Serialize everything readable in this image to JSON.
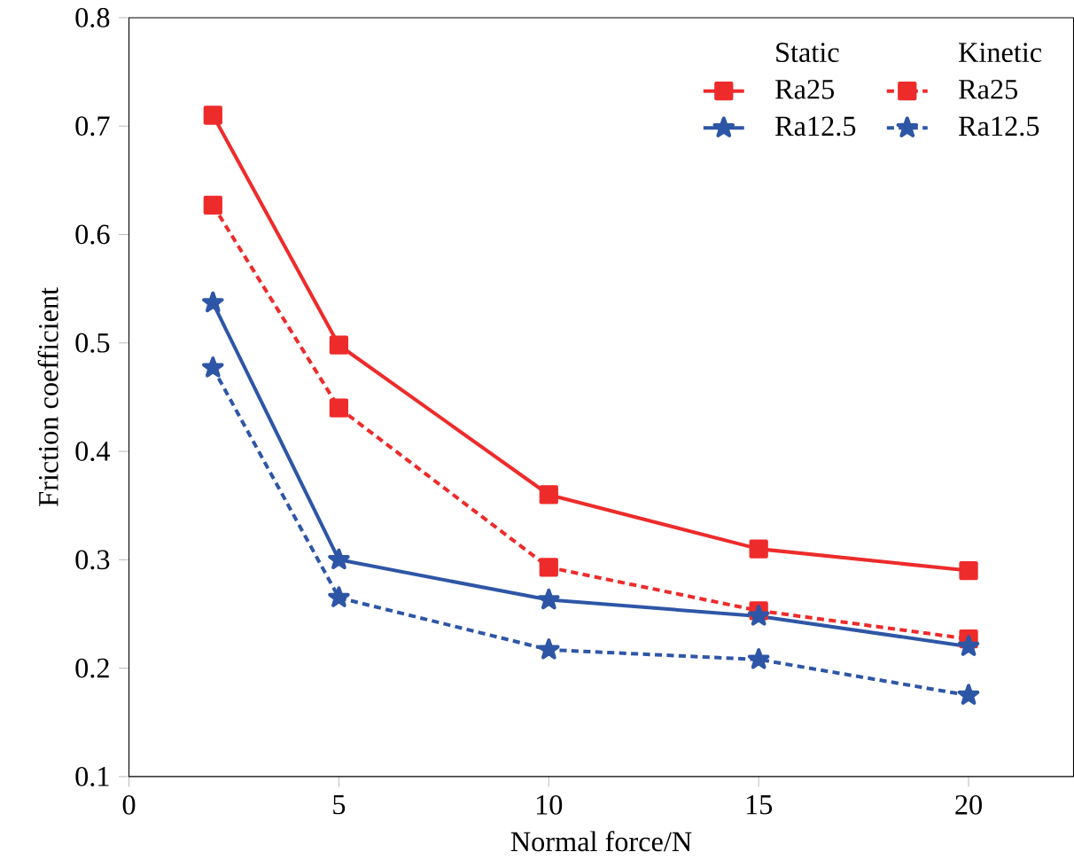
{
  "chart_data": {
    "type": "line",
    "xlabel": "Normal force/N",
    "ylabel": "Friction coefficient",
    "x": [
      2,
      5,
      10,
      15,
      20
    ],
    "series": [
      {
        "name": "Ra25",
        "color": "#ee2b2b",
        "values": [
          0.71,
          0.498,
          0.36,
          0.31,
          0.29
        ],
        "marker": "square",
        "line_style": "solid"
      },
      {
        "name": "Ra25",
        "color": "#ee2b2b",
        "values": [
          0.627,
          0.44,
          0.293,
          0.253,
          0.227
        ],
        "marker": "square",
        "line_style": "dotted"
      },
      {
        "name": "Ra12.5",
        "color": "#2e56a6",
        "values": [
          0.537,
          0.3,
          0.263,
          0.248,
          0.22
        ],
        "marker": "star",
        "line_style": "solid"
      },
      {
        "name": "Ra12.5",
        "color": "#2e56a6",
        "values": [
          0.477,
          0.265,
          0.217,
          0.208,
          0.175
        ],
        "marker": "star",
        "line_style": "dotted"
      }
    ],
    "annotations": [
      "Static",
      "Kinetic"
    ],
    "xlim": [
      0,
      22.5
    ],
    "ylim": [
      0.1,
      0.8
    ],
    "xticks": [
      0,
      5,
      10,
      15,
      20
    ],
    "yticks": [
      0.1,
      0.2,
      0.3,
      0.4,
      0.5,
      0.6,
      0.7,
      0.8
    ],
    "grid": false,
    "legend": "top right"
  }
}
